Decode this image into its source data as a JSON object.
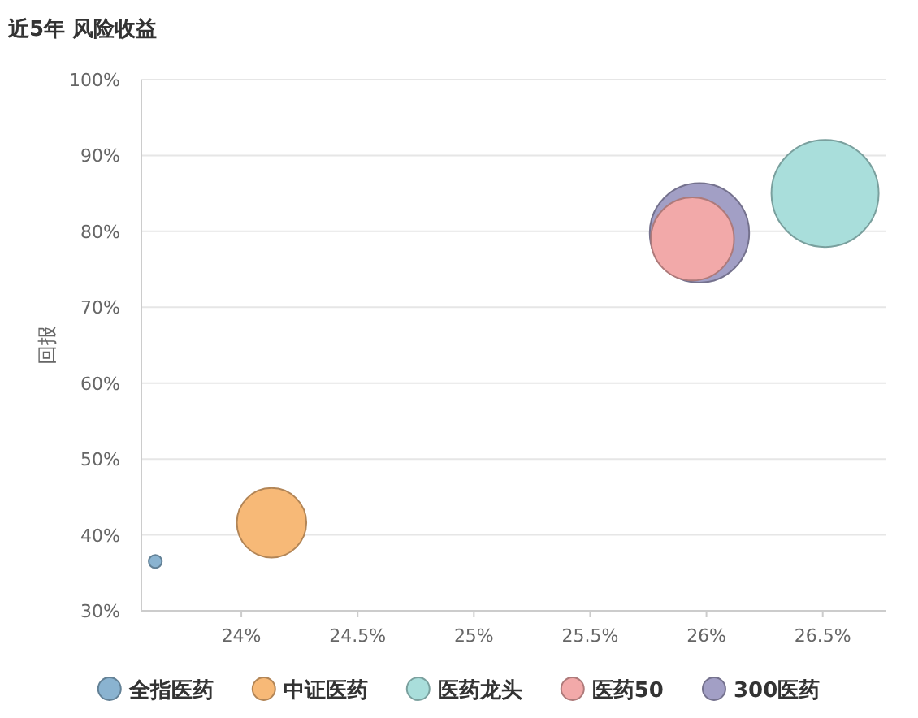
{
  "chart_data": {
    "type": "bubble",
    "title": "近5年 风险收益",
    "ylabel": "回报",
    "xlim": [
      23.57,
      26.77
    ],
    "ylim": [
      30,
      100
    ],
    "xticks": [
      {
        "value": 24,
        "label": "24%"
      },
      {
        "value": 24.5,
        "label": "24.5%"
      },
      {
        "value": 25,
        "label": "25%"
      },
      {
        "value": 25.5,
        "label": "25.5%"
      },
      {
        "value": 26,
        "label": "26%"
      },
      {
        "value": 26.5,
        "label": "26.5%"
      }
    ],
    "yticks": [
      {
        "value": 30,
        "label": "30%"
      },
      {
        "value": 40,
        "label": "40%"
      },
      {
        "value": 50,
        "label": "50%"
      },
      {
        "value": 60,
        "label": "60%"
      },
      {
        "value": 70,
        "label": "70%"
      },
      {
        "value": 80,
        "label": "80%"
      },
      {
        "value": 90,
        "label": "90%"
      },
      {
        "value": 100,
        "label": "100%"
      }
    ],
    "grid": "y",
    "legend": "bottom",
    "marker": "circle",
    "series": [
      {
        "name": "全指医药",
        "color": "#8ab3d0",
        "x": [
          23.63
        ],
        "values": [
          36.5
        ],
        "sizes": [
          0.015
        ]
      },
      {
        "name": "中证医药",
        "color": "#f7b977",
        "x": [
          24.13
        ],
        "values": [
          41.6
        ],
        "sizes": [
          0.42
        ]
      },
      {
        "name": "医药龙头",
        "color": "#a9dedb",
        "x": [
          26.51
        ],
        "values": [
          85.0
        ],
        "sizes": [
          1
        ]
      },
      {
        "name": "医药50",
        "color": "#f2a9a9",
        "x": [
          25.94
        ],
        "values": [
          79.0
        ],
        "sizes": [
          0.6
        ]
      },
      {
        "name": "300医药",
        "color": "#a29fc5",
        "x": [
          25.97
        ],
        "values": [
          79.8
        ],
        "sizes": [
          0.86
        ]
      }
    ]
  }
}
